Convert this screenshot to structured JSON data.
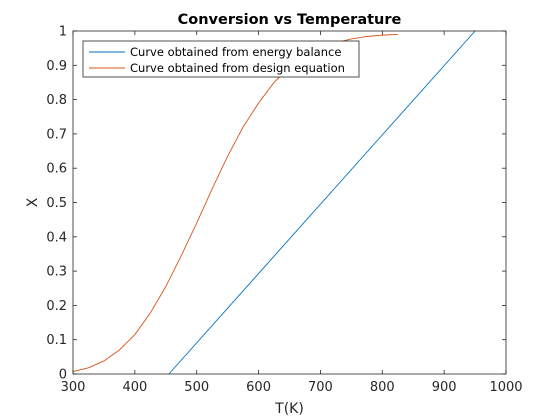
{
  "chart_data": {
    "type": "line",
    "title": "Conversion vs Temperature",
    "xlabel": "T(K)",
    "ylabel": "X",
    "xlim": [
      300,
      1000
    ],
    "ylim": [
      0,
      1
    ],
    "xticks": [
      300,
      400,
      500,
      600,
      700,
      800,
      900,
      1000
    ],
    "yticks": [
      0,
      0.1,
      0.2,
      0.3,
      0.4,
      0.5,
      0.6,
      0.7,
      0.8,
      0.9,
      1
    ],
    "ytick_labels": [
      "0",
      "0.1",
      "0.2",
      "0.3",
      "0.4",
      "0.5",
      "0.6",
      "0.7",
      "0.8",
      "0.9",
      "1"
    ],
    "legend_position": "top-left",
    "grid": false,
    "series": [
      {
        "name": "Curve obtained from energy balance",
        "color": "#0072BD",
        "x": [
          455,
          950
        ],
        "y": [
          0,
          1
        ]
      },
      {
        "name": "Curve obtained from design equation",
        "color": "#D95319",
        "x": [
          300,
          325,
          350,
          375,
          400,
          425,
          450,
          475,
          500,
          525,
          550,
          575,
          600,
          625,
          650,
          675,
          700,
          725,
          750,
          775,
          800,
          825
        ],
        "y": [
          0.007,
          0.018,
          0.038,
          0.07,
          0.115,
          0.178,
          0.255,
          0.345,
          0.44,
          0.54,
          0.635,
          0.72,
          0.79,
          0.85,
          0.895,
          0.928,
          0.95,
          0.966,
          0.977,
          0.984,
          0.988,
          0.99
        ]
      }
    ]
  }
}
